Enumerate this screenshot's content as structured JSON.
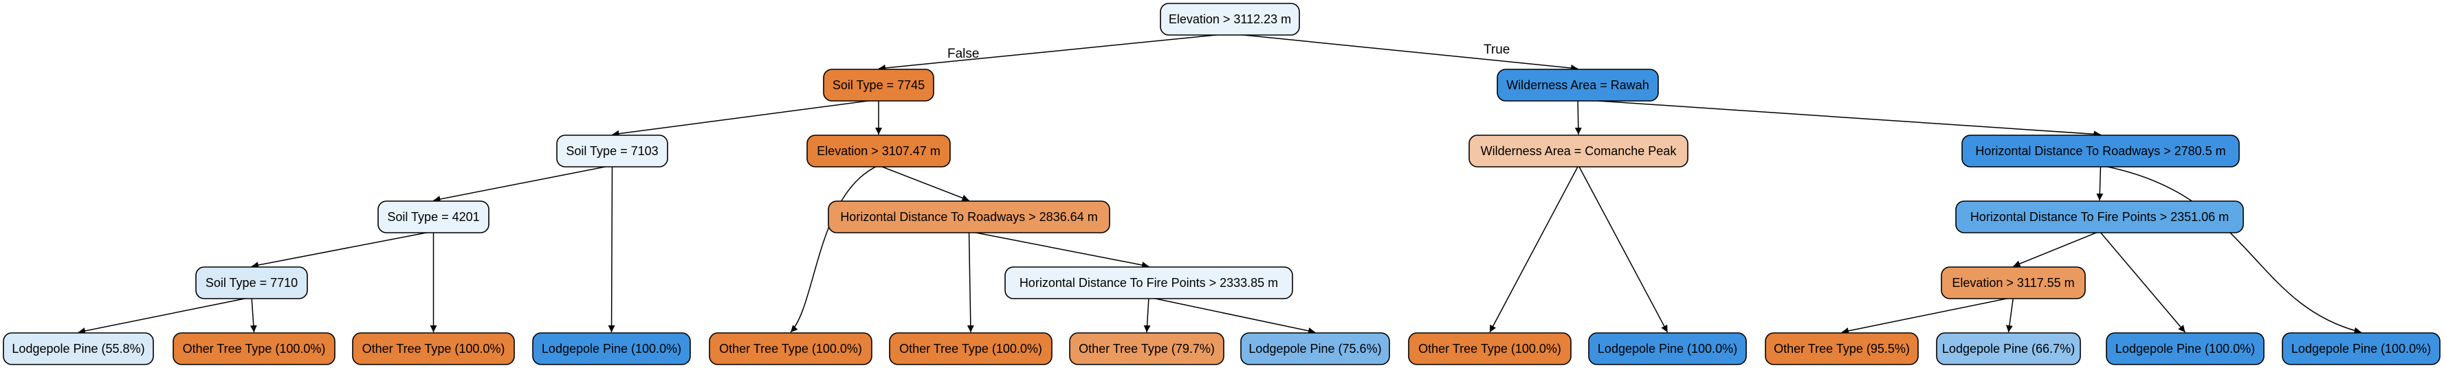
{
  "colors": {
    "edge": "#000000",
    "text": "#000000",
    "node_fills": {
      "pale_blue": "#e9f3fb",
      "light_blue": "#d8e9f7",
      "orange": "#e58139",
      "mid_orange": "#ea9a5f",
      "pale_orange": "#f3c6a5",
      "blue": "#3c92e0",
      "mid_blue": "#5ea8e6",
      "light_sky_blue": "#8fc1ec",
      "soft_blue": "#7cb6e9"
    }
  },
  "diagram": {
    "edge_labels": {
      "false_label": "False",
      "true_label": "True"
    },
    "nodes": [
      {
        "id": "n0",
        "label": "Elevation > 3112.23 m",
        "fill": "pale_blue"
      },
      {
        "id": "n1",
        "label": "Soil Type = 7745",
        "fill": "orange"
      },
      {
        "id": "n2",
        "label": "Wilderness Area = Rawah",
        "fill": "blue"
      },
      {
        "id": "n3",
        "label": "Soil Type = 7103",
        "fill": "pale_blue"
      },
      {
        "id": "n4",
        "label": "Elevation > 3107.47 m",
        "fill": "orange"
      },
      {
        "id": "n5",
        "label": "Wilderness Area = Comanche Peak",
        "fill": "pale_orange"
      },
      {
        "id": "n6",
        "label": "Horizontal Distance To Roadways > 2780.5 m",
        "fill": "blue"
      },
      {
        "id": "n7",
        "label": "Soil Type = 4201",
        "fill": "pale_blue"
      },
      {
        "id": "n8",
        "label": "Horizontal Distance To Roadways > 2836.64 m",
        "fill": "mid_orange"
      },
      {
        "id": "n9",
        "label": "Horizontal Distance To Fire Points > 2351.06 m",
        "fill": "mid_blue"
      },
      {
        "id": "n10",
        "label": "Soil Type = 7710",
        "fill": "light_blue"
      },
      {
        "id": "n11",
        "label": "Horizontal Distance To Fire Points > 2333.85 m",
        "fill": "pale_blue"
      },
      {
        "id": "n12",
        "label": "Elevation > 3117.55 m",
        "fill": "mid_orange"
      },
      {
        "id": "l1",
        "label": "Lodgepole Pine (55.8%)",
        "fill": "light_blue"
      },
      {
        "id": "l2",
        "label": "Other Tree Type (100.0%)",
        "fill": "orange"
      },
      {
        "id": "l3",
        "label": "Other Tree Type (100.0%)",
        "fill": "orange"
      },
      {
        "id": "l4",
        "label": "Lodgepole Pine (100.0%)",
        "fill": "blue"
      },
      {
        "id": "l5",
        "label": "Other Tree Type (100.0%)",
        "fill": "orange"
      },
      {
        "id": "l6",
        "label": "Other Tree Type (100.0%)",
        "fill": "orange"
      },
      {
        "id": "l7",
        "label": "Other Tree Type (79.7%)",
        "fill": "mid_orange"
      },
      {
        "id": "l8",
        "label": "Lodgepole Pine (75.6%)",
        "fill": "soft_blue"
      },
      {
        "id": "l9",
        "label": "Other Tree Type (100.0%)",
        "fill": "orange"
      },
      {
        "id": "l10",
        "label": "Lodgepole Pine (100.0%)",
        "fill": "blue"
      },
      {
        "id": "l11",
        "label": "Other Tree Type (95.5%)",
        "fill": "orange"
      },
      {
        "id": "l12",
        "label": "Lodgepole Pine (66.7%)",
        "fill": "light_sky_blue"
      },
      {
        "id": "l13",
        "label": "Lodgepole Pine (100.0%)",
        "fill": "blue"
      },
      {
        "id": "l14",
        "label": "Lodgepole Pine (100.0%)",
        "fill": "blue"
      }
    ],
    "edges": [
      {
        "from": "n0",
        "to": "n1",
        "label_key": "false_label"
      },
      {
        "from": "n0",
        "to": "n2",
        "label_key": "true_label"
      },
      {
        "from": "n1",
        "to": "n3"
      },
      {
        "from": "n1",
        "to": "n4"
      },
      {
        "from": "n2",
        "to": "n5"
      },
      {
        "from": "n2",
        "to": "n6"
      },
      {
        "from": "n3",
        "to": "n7"
      },
      {
        "from": "n3",
        "to": "l4"
      },
      {
        "from": "n4",
        "to": "l5"
      },
      {
        "from": "n4",
        "to": "n8"
      },
      {
        "from": "n5",
        "to": "l9"
      },
      {
        "from": "n5",
        "to": "l10"
      },
      {
        "from": "n6",
        "to": "n9"
      },
      {
        "from": "n6",
        "to": "l14"
      },
      {
        "from": "n7",
        "to": "n10"
      },
      {
        "from": "n7",
        "to": "l3"
      },
      {
        "from": "n8",
        "to": "l6"
      },
      {
        "from": "n8",
        "to": "n11"
      },
      {
        "from": "n9",
        "to": "n12"
      },
      {
        "from": "n9",
        "to": "l13"
      },
      {
        "from": "n10",
        "to": "l1"
      },
      {
        "from": "n10",
        "to": "l2"
      },
      {
        "from": "n11",
        "to": "l7"
      },
      {
        "from": "n11",
        "to": "l8"
      },
      {
        "from": "n12",
        "to": "l11"
      },
      {
        "from": "n12",
        "to": "l12"
      }
    ]
  }
}
